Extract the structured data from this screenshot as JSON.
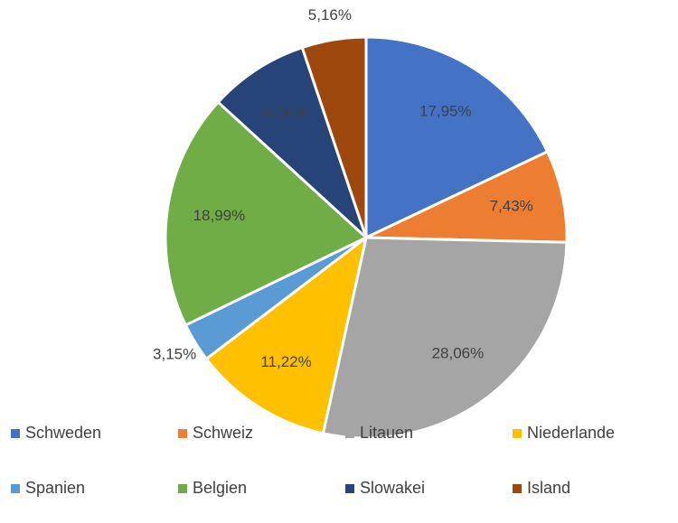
{
  "chart_data": {
    "type": "pie",
    "categories": [
      "Schweden",
      "Schweiz",
      "Litauen",
      "Niederlande",
      "Spanien",
      "Belgien",
      "Slowakei",
      "Island"
    ],
    "values": [
      17.95,
      7.43,
      28.06,
      11.22,
      3.15,
      18.99,
      8.04,
      5.16
    ],
    "value_labels": [
      "17,95%",
      "7,43%",
      "28,06%",
      "11,22%",
      "3,15%",
      "18,99%",
      "8,04%",
      "5,16%"
    ],
    "colors": [
      "#4472c4",
      "#ed7d31",
      "#a5a5a5",
      "#ffc000",
      "#5b9bd5",
      "#70ad47",
      "#264478",
      "#9e480e"
    ],
    "legend": "bottom"
  }
}
